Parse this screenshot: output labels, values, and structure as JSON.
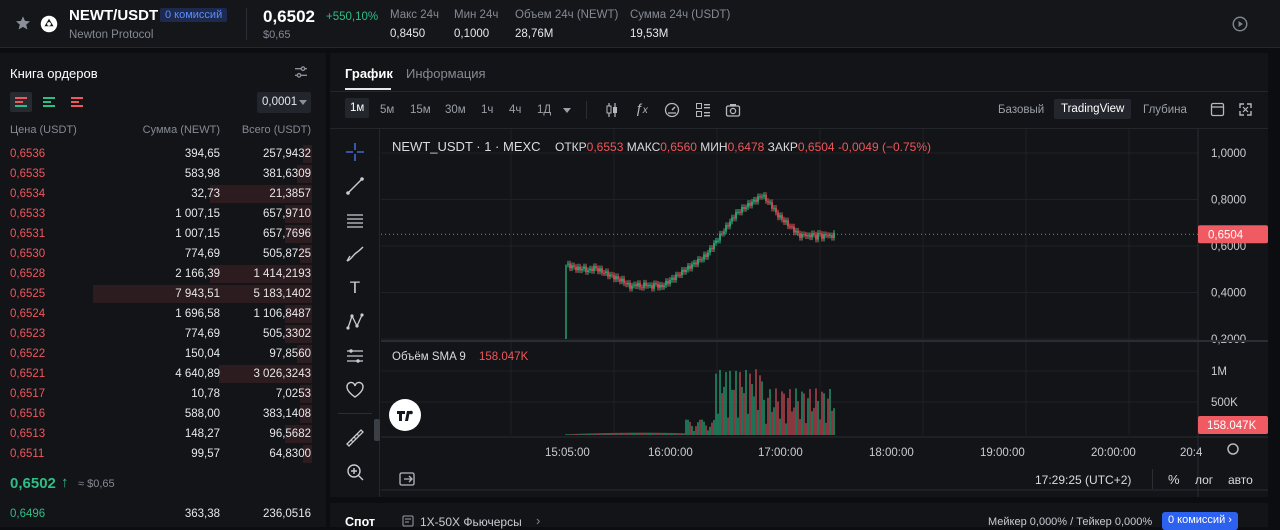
{
  "header": {
    "pair": "NEWT/USDT",
    "fee_badge": "0 комиссий",
    "project": "Newton Protocol",
    "price": "0,6502",
    "change": "+550,10%",
    "price_usd": "$0,65",
    "stats": [
      {
        "label": "Макс 24ч",
        "value": "0,8450"
      },
      {
        "label": "Мин 24ч",
        "value": "0,1000"
      },
      {
        "label": "Объем 24ч (NEWT)",
        "value": "28,76M"
      },
      {
        "label": "Сумма 24ч (USDT)",
        "value": "19,53M"
      }
    ]
  },
  "orderbook": {
    "title": "Книга ордеров",
    "precision": "0,0001",
    "columns": [
      "Цена (USDT)",
      "Сумма (NEWT)",
      "Всего (USDT)"
    ],
    "asks": [
      {
        "price": "0,6536",
        "amount": "394,65",
        "total": "257,9432",
        "depth": 0.03
      },
      {
        "price": "0,6535",
        "amount": "583,98",
        "total": "381,6309",
        "depth": 0.05
      },
      {
        "price": "0,6534",
        "amount": "32,73",
        "total": "21,3857",
        "depth": 0.34
      },
      {
        "price": "0,6533",
        "amount": "1 007,15",
        "total": "657,9710",
        "depth": 0.09
      },
      {
        "price": "0,6531",
        "amount": "1 007,15",
        "total": "657,7696",
        "depth": 0.09
      },
      {
        "price": "0,6530",
        "amount": "774,69",
        "total": "505,8725",
        "depth": 0.04
      },
      {
        "price": "0,6528",
        "amount": "2 166,39",
        "total": "1 414,2193",
        "depth": 0.34
      },
      {
        "price": "0,6525",
        "amount": "7 943,51",
        "total": "5 183,1402",
        "depth": 0.73
      },
      {
        "price": "0,6524",
        "amount": "1 696,58",
        "total": "1 106,8487",
        "depth": 0.09
      },
      {
        "price": "0,6523",
        "amount": "774,69",
        "total": "505,3302",
        "depth": 0.09
      },
      {
        "price": "0,6522",
        "amount": "150,04",
        "total": "97,8560",
        "depth": 0.05
      },
      {
        "price": "0,6521",
        "amount": "4 640,89",
        "total": "3 026,3243",
        "depth": 0.31
      },
      {
        "price": "0,6517",
        "amount": "10,78",
        "total": "7,0253",
        "depth": 0.04
      },
      {
        "price": "0,6516",
        "amount": "588,00",
        "total": "383,1408",
        "depth": 0.04
      },
      {
        "price": "0,6513",
        "amount": "148,27",
        "total": "96,5682",
        "depth": 0.09
      },
      {
        "price": "0,6511",
        "amount": "99,57",
        "total": "64,8300",
        "depth": 0.03
      }
    ],
    "mid_price": "0,6502",
    "mid_usd": "≈ $0,65",
    "bids": [
      {
        "price": "0,6496",
        "amount": "363,38",
        "total": "236,0516"
      }
    ]
  },
  "chart": {
    "tabs": [
      "График",
      "Информация"
    ],
    "timeframes": [
      "1м",
      "5м",
      "15м",
      "30м",
      "1ч",
      "4ч",
      "1Д"
    ],
    "views": [
      "Базовый",
      "TradingView",
      "Глубина"
    ],
    "symbol": "NEWT_USDT · 1 · MEXC",
    "ohlc": [
      {
        "label": "ОТКР",
        "value": "0,6553"
      },
      {
        "label": "МАКС",
        "value": "0,6560"
      },
      {
        "label": "МИН",
        "value": "0,6478"
      },
      {
        "label": "ЗАКР",
        "value": "0,6504"
      }
    ],
    "change": "-0,0049 (−0.75%)",
    "price_ticks": [
      "1,0000",
      "0,8000",
      "0,6000",
      "0,4000",
      "0,2000"
    ],
    "last_price_tag": "0,6504",
    "volume_label": "Объём SMA 9",
    "volume_value": "158.047K",
    "volume_ticks": [
      "1M",
      "500K"
    ],
    "volume_tag": "158.047K",
    "time_ticks": [
      "15:05:00",
      "16:00:00",
      "17:00:00",
      "18:00:00",
      "19:00:00",
      "20:00:00",
      "20:4"
    ],
    "clock": "17:29:25 (UTC+2)",
    "scale_buttons": [
      "%",
      "лог",
      "авто"
    ]
  },
  "bottom": {
    "tab_spot": "Спот",
    "futures": "1X-50X Фьючерсы",
    "fees": "Мейкер 0,000% / Тейкер 0,000%",
    "fee_badge": "0 комиссий"
  },
  "colors": {
    "up": "#2ebd85",
    "down": "#f0565c",
    "accent": "#3b6cf5"
  }
}
